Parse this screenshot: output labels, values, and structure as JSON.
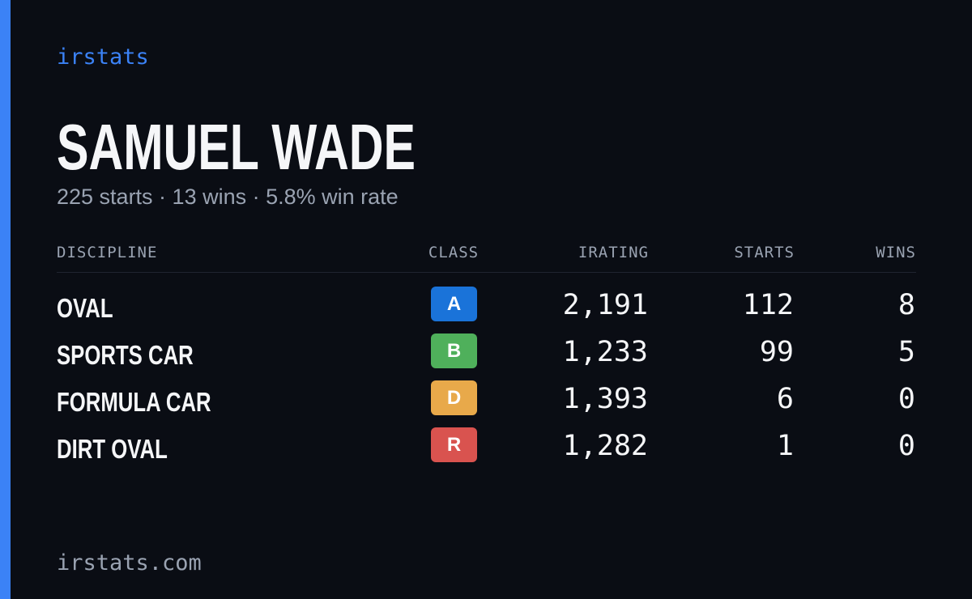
{
  "brand": "irstats",
  "driver": {
    "name": "SAMUEL WADE",
    "summary": "225 starts · 13 wins · 5.8% win rate"
  },
  "table": {
    "headers": {
      "discipline": "DISCIPLINE",
      "class": "CLASS",
      "irating": "IRATING",
      "starts": "STARTS",
      "wins": "WINS"
    },
    "rows": [
      {
        "discipline": "OVAL",
        "class": "A",
        "class_color": "#1a73d9",
        "irating": "2,191",
        "starts": "112",
        "wins": "8"
      },
      {
        "discipline": "SPORTS CAR",
        "class": "B",
        "class_color": "#4fb05b",
        "irating": "1,233",
        "starts": "99",
        "wins": "5"
      },
      {
        "discipline": "FORMULA CAR",
        "class": "D",
        "class_color": "#e8a94a",
        "irating": "1,393",
        "starts": "6",
        "wins": "0"
      },
      {
        "discipline": "DIRT OVAL",
        "class": "R",
        "class_color": "#d9534f",
        "irating": "1,282",
        "starts": "1",
        "wins": "0"
      }
    ]
  },
  "footer": {
    "url": "irstats.com"
  },
  "colors": {
    "accent": "#3b82f6",
    "background": "#0a0d14",
    "muted": "#9aa3b2"
  }
}
